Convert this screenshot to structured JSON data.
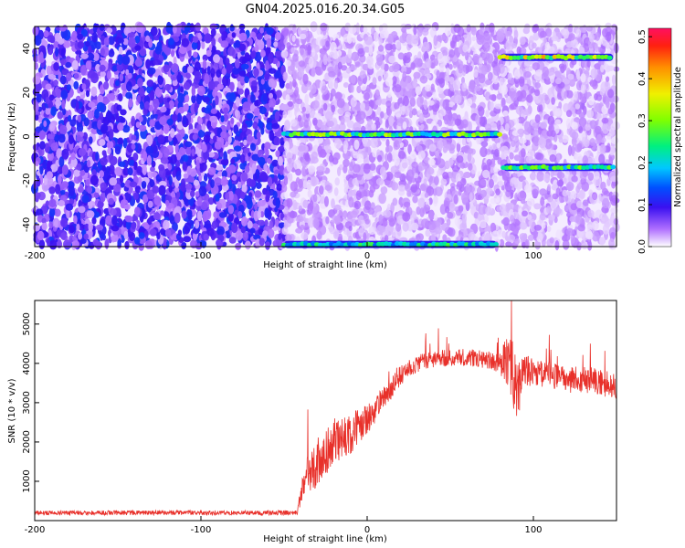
{
  "title": "GN04.2025.016.20.34.G05",
  "chart_data": [
    {
      "type": "heatmap",
      "xlabel": "Height of straight line (km)",
      "ylabel": "Frequency (Hz)",
      "xlim": [
        -200,
        150
      ],
      "ylim": [
        -50,
        50
      ],
      "xticks": [
        -200,
        -100,
        0,
        100
      ],
      "xtick_labels": [
        "-200",
        "-100",
        "0",
        "100"
      ],
      "yticks": [
        -40,
        -20,
        0,
        20,
        40
      ],
      "ytick_labels": [
        "-40",
        "-20",
        "0",
        "20",
        "40"
      ],
      "colorbar": {
        "label": "Normalized spectral amplitude",
        "range": [
          0.0,
          0.52
        ],
        "ticks": [
          0.0,
          0.1,
          0.2,
          0.3,
          0.4,
          0.5
        ],
        "tick_labels": [
          "0.0",
          "0.1",
          "0.2",
          "0.3",
          "0.4",
          "0.5"
        ]
      },
      "regions": [
        {
          "x_range": [
            -200,
            -50
          ],
          "background_level": 0.07
        },
        {
          "x_range": [
            -50,
            150
          ],
          "background_level": 0.025
        }
      ],
      "tracks": [
        {
          "x_range": [
            -50,
            80
          ],
          "frequency": 1,
          "level": 0.25
        },
        {
          "x_range": [
            -50,
            78
          ],
          "frequency": -49,
          "level": 0.2
        },
        {
          "x_range": [
            80,
            148
          ],
          "frequency": 36,
          "level": 0.3
        },
        {
          "x_range": [
            82,
            148
          ],
          "frequency": -14,
          "level": 0.22
        }
      ]
    },
    {
      "type": "line",
      "xlabel": "Height of straight line (km)",
      "ylabel": "SNR (10 * v/v)",
      "xlim": [
        -200,
        150
      ],
      "ylim": [
        0,
        5600
      ],
      "xticks": [
        -200,
        -100,
        0,
        100
      ],
      "xtick_labels": [
        "-200",
        "-100",
        "0",
        "100"
      ],
      "yticks": [
        1000,
        2000,
        3000,
        4000,
        5000
      ],
      "ytick_labels": [
        "1000",
        "2000",
        "3000",
        "4000",
        "5000"
      ],
      "series_color": "#e8302a",
      "x": [
        -200,
        -150,
        -100,
        -50,
        -42,
        -38,
        -30,
        -20,
        -10,
        0,
        10,
        20,
        30,
        40,
        50,
        60,
        70,
        80,
        85,
        90,
        95,
        100,
        110,
        120,
        130,
        140,
        150
      ],
      "values": [
        200,
        200,
        200,
        200,
        200,
        1100,
        1400,
        2000,
        2200,
        2600,
        3100,
        3700,
        4000,
        4100,
        4150,
        4150,
        4100,
        4000,
        4100,
        3400,
        3800,
        3800,
        3700,
        3600,
        3600,
        3500,
        3450
      ],
      "noise": [
        60,
        60,
        60,
        60,
        60,
        500,
        550,
        600,
        500,
        400,
        300,
        250,
        220,
        220,
        220,
        220,
        220,
        280,
        700,
        900,
        450,
        350,
        350,
        350,
        350,
        350,
        350
      ]
    }
  ]
}
